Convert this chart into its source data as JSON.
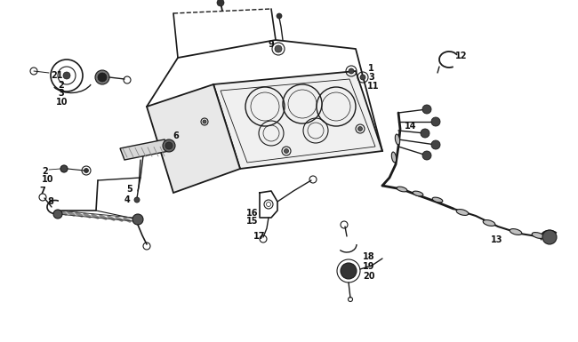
{
  "bg_color": "#ffffff",
  "line_color": "#1a1a1a",
  "text_color": "#111111",
  "fig_width": 6.5,
  "fig_height": 3.85,
  "dpi": 100
}
